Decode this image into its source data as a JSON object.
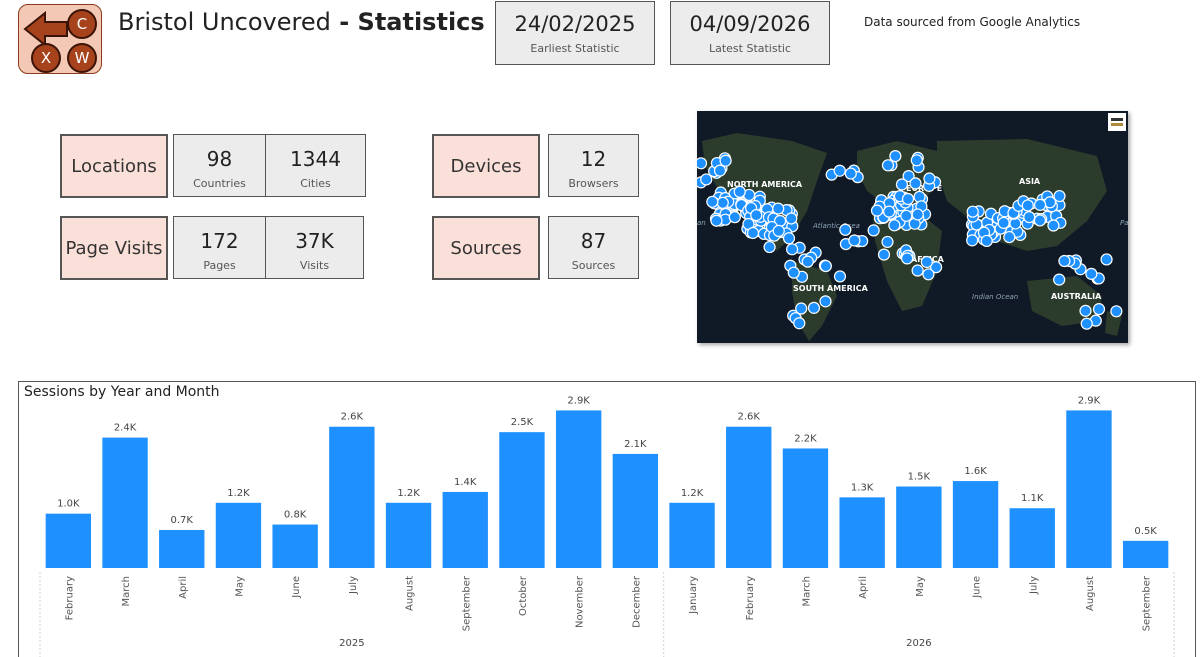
{
  "header": {
    "title_prefix": "Bristol Uncovered",
    "title_sep": " - ",
    "title_bold": "Statistics",
    "logo_letters": [
      "C",
      "X",
      "W"
    ],
    "earliest": {
      "value": "24/02/2025",
      "label": "Earliest Statistic"
    },
    "latest": {
      "value": "04/09/2026",
      "label": "Latest Statistic"
    },
    "source_note": "Data sourced from Google Analytics"
  },
  "stats": {
    "locations": {
      "label": "Locations",
      "items": [
        {
          "value": "98",
          "label": "Countries"
        },
        {
          "value": "1344",
          "label": "Cities"
        }
      ]
    },
    "page_visits": {
      "label": "Page Visits",
      "items": [
        {
          "value": "172",
          "label": "Pages"
        },
        {
          "value": "37K",
          "label": "Visits"
        }
      ]
    },
    "devices": {
      "label": "Devices",
      "items": [
        {
          "value": "12",
          "label": "Browsers"
        }
      ]
    },
    "sources": {
      "label": "Sources",
      "items": [
        {
          "value": "87",
          "label": "Sources"
        }
      ]
    }
  },
  "map": {
    "labels": [
      "NORTH AMERICA",
      "EUROPE",
      "ASIA",
      "AFRICA",
      "SOUTH AMERICA",
      "AUSTRALIA",
      "Atlantic Ocea",
      "Indian Ocean",
      "an",
      "Pa"
    ],
    "colors": {
      "land": "#2a3a2c",
      "ocean": "#0f1a26",
      "point": "#1e90ff"
    }
  },
  "chart_data": {
    "type": "bar",
    "title": "Sessions by Year and Month",
    "categories": [
      "February",
      "March",
      "April",
      "May",
      "June",
      "July",
      "August",
      "September",
      "October",
      "November",
      "December",
      "January",
      "February",
      "March",
      "April",
      "May",
      "June",
      "July",
      "August",
      "September"
    ],
    "years": [
      {
        "label": "2025",
        "count": 11
      },
      {
        "label": "2026",
        "count": 9
      }
    ],
    "values": [
      1.0,
      2.4,
      0.7,
      1.2,
      0.8,
      2.6,
      1.2,
      1.4,
      2.5,
      2.9,
      2.1,
      1.2,
      2.6,
      2.2,
      1.3,
      1.5,
      1.6,
      1.1,
      2.9,
      0.5
    ],
    "data_labels": [
      "1.0K",
      "2.4K",
      "0.7K",
      "1.2K",
      "0.8K",
      "2.6K",
      "1.2K",
      "1.4K",
      "2.5K",
      "2.9K",
      "2.1K",
      "1.2K",
      "2.6K",
      "2.2K",
      "1.3K",
      "1.5K",
      "1.6K",
      "1.1K",
      "2.9K",
      "0.5K"
    ],
    "unit": "thousands of sessions",
    "ylim": [
      0,
      3
    ],
    "grid": false,
    "color": "#1e90ff"
  }
}
